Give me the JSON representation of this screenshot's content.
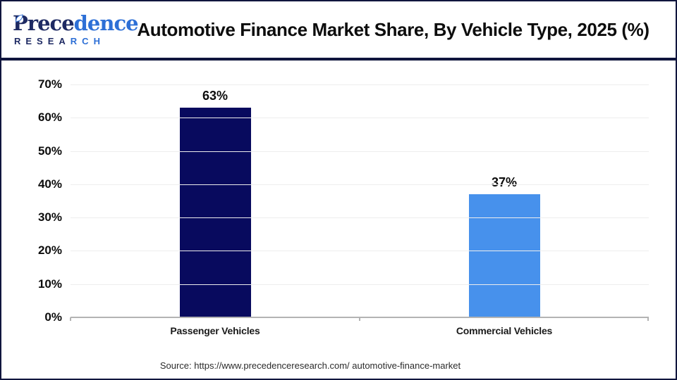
{
  "header": {
    "logo": {
      "brand_dark": "Prece",
      "brand_light": "dence",
      "sub_dark": "RESEA",
      "sub_light": "RCH"
    },
    "title": "Automotive Finance Market Share, By Vehicle Type, 2025 (%)"
  },
  "chart_data": {
    "type": "bar",
    "title": "Automotive Finance Market Share, By Vehicle Type, 2025 (%)",
    "categories": [
      "Passenger Vehicles",
      "Commercial Vehicles"
    ],
    "values": [
      63,
      37
    ],
    "value_labels": [
      "63%",
      "37%"
    ],
    "bar_colors": [
      "#080a5e",
      "#4791ec"
    ],
    "xlabel": "",
    "ylabel": "",
    "ylim": [
      0,
      70
    ],
    "ytick_step": 10,
    "yticks": [
      "0%",
      "10%",
      "20%",
      "30%",
      "40%",
      "50%",
      "60%",
      "70%"
    ],
    "grid": "horizontal",
    "legend": "none"
  },
  "footer": {
    "source": "Source: https://www.precedenceresearch.com/ automotive-finance-market"
  },
  "colors": {
    "frame_navy": "#10153d",
    "bar_passenger": "#080a5e",
    "bar_commercial": "#4791ec",
    "logo_navy": "#1e2a63",
    "logo_blue": "#2d6fd6",
    "gridline": "#ededed",
    "axis_line": "#b3b3b3"
  }
}
